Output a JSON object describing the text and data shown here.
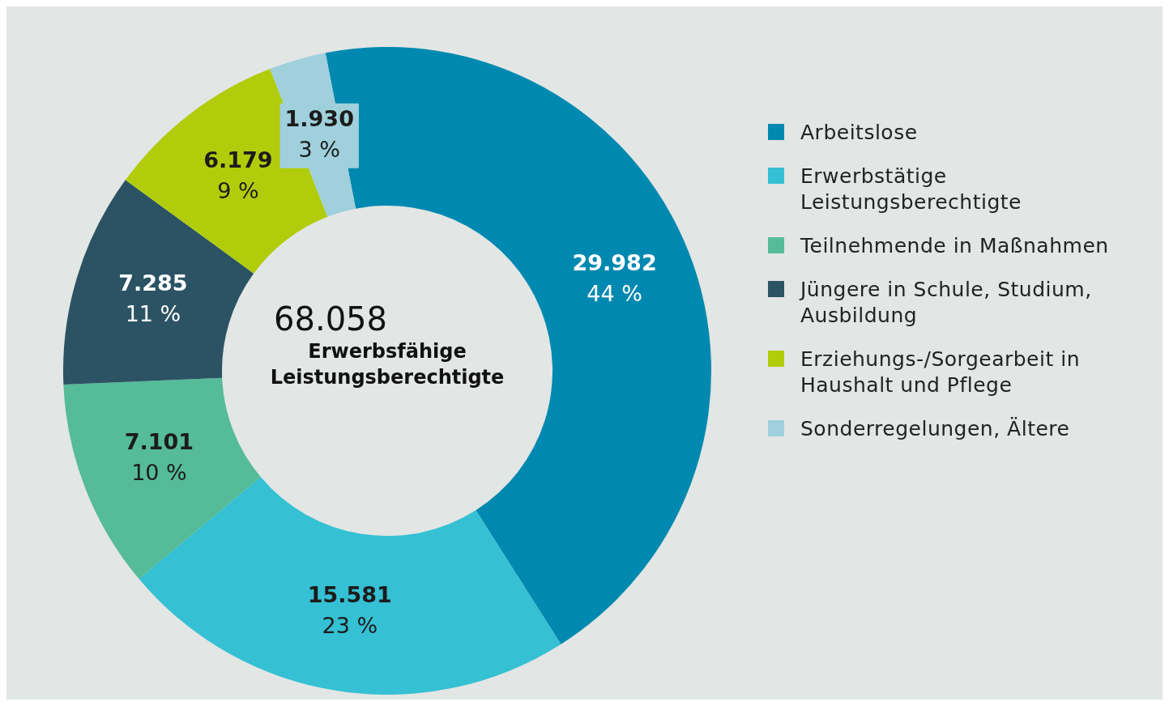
{
  "chart_data": {
    "type": "donut",
    "categories": [
      "Arbeitslose",
      "Erwerbstätige Leistungsberechtigte",
      "Teilnehmende in Maßnahmen",
      "Jüngere in Schule, Studium, Ausbildung",
      "Erziehungs-/Sorgearbeit in Haushalt und Pflege",
      "Sonderregelungen, Ältere"
    ],
    "values": [
      29982,
      15581,
      7101,
      7285,
      6179,
      1930
    ],
    "colors": [
      "#0089b0",
      "#35c0d3",
      "#55bb98",
      "#2b5364",
      "#b1cc0a",
      "#9fd0dc"
    ],
    "value_labels": [
      "29.982\n44 %",
      "15.581\n23 %",
      "7.101\n10 %",
      "7.285\n11 %",
      "6.179\n9 %",
      "1.930\n3 %"
    ],
    "annotations": [
      "68.058",
      "Erwerbsfähige Leistungsberechtigte"
    ],
    "legend": "right"
  }
}
